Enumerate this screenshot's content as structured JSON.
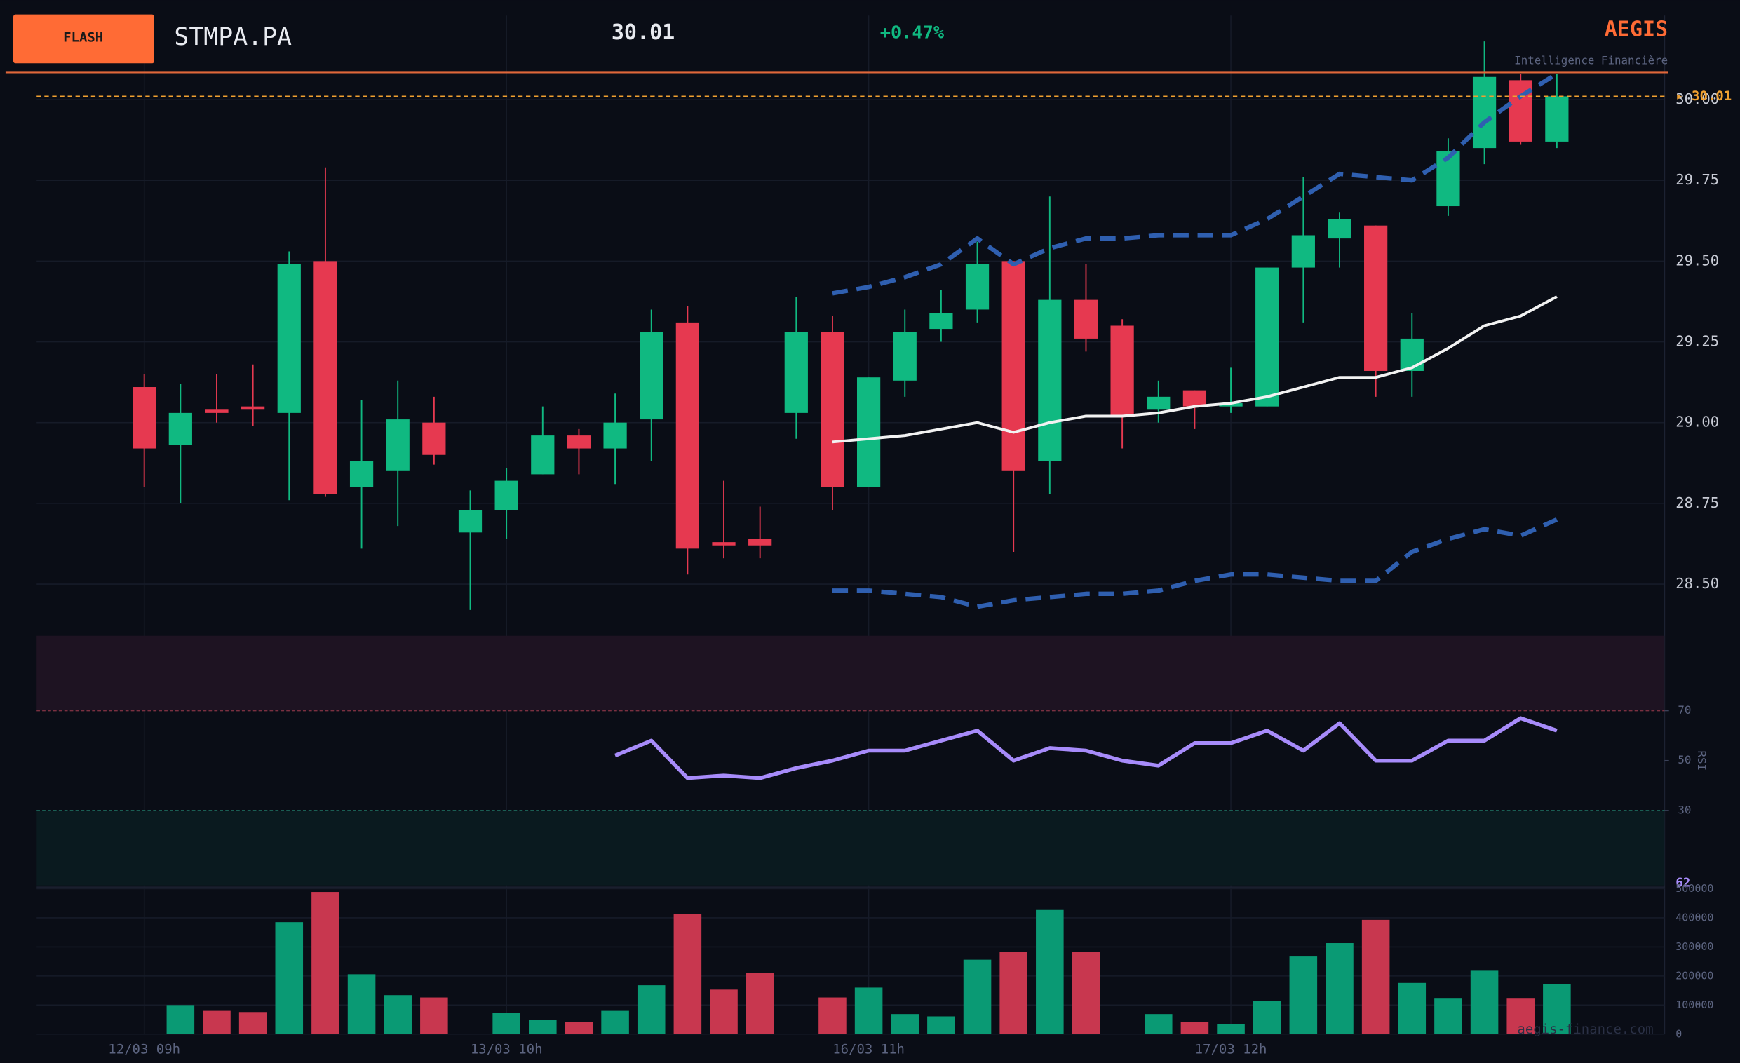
{
  "header": {
    "badge": "FLASH",
    "symbol": "STMPA.PA",
    "price": 30.01,
    "change": "+0.47%",
    "brand": "AEGIS",
    "tagline": "Intelligence Financière",
    "watermark": "aegis-finance.com"
  },
  "chart_data": [
    {
      "type": "candlestick",
      "categories": [
        "12/03 09h",
        null,
        null,
        null,
        null,
        null,
        null,
        null,
        null,
        null,
        "13/03 10h",
        null,
        null,
        null,
        null,
        null,
        null,
        null,
        null,
        null,
        "16/03 11h",
        null,
        null,
        null,
        null,
        null,
        null,
        null,
        null,
        null,
        "17/03 12h",
        null,
        null,
        null,
        null,
        null,
        null,
        null,
        null,
        null
      ],
      "open": [
        29.11,
        28.93,
        29.04,
        29.05,
        29.03,
        29.5,
        28.8,
        28.85,
        29.0,
        28.66,
        28.73,
        28.84,
        28.96,
        28.92,
        29.01,
        29.31,
        28.63,
        28.64,
        29.03,
        29.28,
        28.8,
        29.13,
        29.29,
        29.35,
        29.5,
        28.88,
        29.38,
        29.3,
        29.04,
        29.1,
        29.05,
        29.05,
        29.48,
        29.57,
        29.61,
        29.16,
        29.67,
        29.85,
        30.06,
        29.87
      ],
      "high": [
        29.15,
        29.12,
        29.15,
        29.18,
        29.53,
        29.79,
        29.07,
        29.13,
        29.08,
        28.79,
        28.86,
        29.05,
        28.98,
        29.09,
        29.35,
        29.36,
        28.82,
        28.74,
        29.39,
        29.33,
        29.14,
        29.35,
        29.41,
        29.56,
        29.5,
        29.7,
        29.49,
        29.32,
        29.13,
        29.1,
        29.17,
        29.48,
        29.76,
        29.65,
        29.61,
        29.34,
        29.88,
        30.18,
        30.08,
        30.08
      ],
      "low": [
        28.8,
        28.75,
        29.0,
        28.99,
        28.76,
        28.77,
        28.61,
        28.68,
        28.87,
        28.42,
        28.64,
        28.84,
        28.84,
        28.81,
        28.88,
        28.53,
        28.58,
        28.58,
        28.95,
        28.73,
        28.8,
        29.08,
        29.25,
        29.31,
        28.6,
        28.78,
        29.22,
        28.92,
        29.0,
        28.98,
        29.03,
        29.05,
        29.31,
        29.48,
        29.08,
        29.08,
        29.64,
        29.8,
        29.86,
        29.85
      ],
      "close": [
        28.92,
        29.03,
        29.03,
        29.04,
        29.49,
        28.78,
        28.88,
        29.01,
        28.9,
        28.73,
        28.82,
        28.96,
        28.92,
        29.0,
        29.28,
        28.61,
        28.62,
        28.62,
        29.28,
        28.8,
        29.14,
        29.28,
        29.34,
        29.49,
        28.85,
        29.38,
        29.26,
        29.02,
        29.08,
        29.05,
        29.06,
        29.48,
        29.58,
        29.63,
        29.16,
        29.26,
        29.84,
        30.07,
        29.87,
        30.01
      ],
      "up_color": "#10b981",
      "down_color": "#e63950",
      "overlays": [
        {
          "color": "#2f5fb0",
          "style": "dashed",
          "values": [
            null,
            null,
            null,
            null,
            null,
            null,
            null,
            null,
            null,
            null,
            null,
            null,
            null,
            null,
            null,
            null,
            null,
            null,
            null,
            29.4,
            29.42,
            29.45,
            29.49,
            29.57,
            29.49,
            29.54,
            29.57,
            29.57,
            29.58,
            29.58,
            29.58,
            29.63,
            29.7,
            29.77,
            29.76,
            29.75,
            29.82,
            29.93,
            30.01,
            30.08
          ]
        },
        {
          "color": "#f2f2f2",
          "style": "solid",
          "values": [
            null,
            null,
            null,
            null,
            null,
            null,
            null,
            null,
            null,
            null,
            null,
            null,
            null,
            null,
            null,
            null,
            null,
            null,
            null,
            28.94,
            28.95,
            28.96,
            28.98,
            29.0,
            28.97,
            29.0,
            29.02,
            29.02,
            29.03,
            29.05,
            29.06,
            29.08,
            29.11,
            29.14,
            29.14,
            29.17,
            29.23,
            29.3,
            29.33,
            29.39
          ]
        },
        {
          "color": "#2f5fb0",
          "style": "dashed",
          "values": [
            null,
            null,
            null,
            null,
            null,
            null,
            null,
            null,
            null,
            null,
            null,
            null,
            null,
            null,
            null,
            null,
            null,
            null,
            null,
            28.48,
            28.48,
            28.47,
            28.46,
            28.43,
            28.45,
            28.46,
            28.47,
            28.47,
            28.48,
            28.51,
            28.53,
            28.53,
            28.52,
            28.51,
            28.51,
            28.6,
            28.64,
            28.67,
            28.65,
            28.7
          ]
        }
      ],
      "last_price": 30.01,
      "last_price_label": "▸ 30.01",
      "last_price_color": "#f0a030",
      "ylim": [
        28.34,
        30.26
      ],
      "yticks": [
        {
          "value": 28.5,
          "label": "28.50"
        },
        {
          "value": 28.75,
          "label": "28.75"
        },
        {
          "value": 29,
          "label": "29.00"
        },
        {
          "value": 29.25,
          "label": "29.25"
        },
        {
          "value": 29.5,
          "label": "29.50"
        },
        {
          "value": 29.75,
          "label": "29.75"
        },
        {
          "value": 30,
          "label": "30.00"
        }
      ],
      "grid": true
    },
    {
      "type": "line",
      "y_label": "RSI",
      "color": "#a78bfa",
      "values": [
        null,
        null,
        null,
        null,
        null,
        null,
        null,
        null,
        null,
        null,
        null,
        null,
        null,
        52,
        58,
        43,
        44,
        43,
        47,
        50,
        54,
        54,
        58,
        62,
        50,
        55,
        54,
        50,
        48,
        57,
        57,
        62,
        54,
        65,
        50,
        50,
        58,
        58,
        67,
        62
      ],
      "ylim": [
        0,
        100
      ],
      "yticks": [
        30,
        50,
        70
      ],
      "overbought": 70,
      "oversold": 30
    },
    {
      "type": "bar",
      "values": [
        0,
        100000,
        80000,
        76000,
        385000,
        489000,
        206000,
        134000,
        126000,
        0,
        73000,
        50000,
        42000,
        80000,
        168000,
        412000,
        153000,
        210000,
        0,
        126000,
        160000,
        69000,
        61000,
        256000,
        282000,
        427000,
        282000,
        0,
        69000,
        42000,
        34000,
        115000,
        267000,
        313000,
        393000,
        176000,
        122000,
        218000,
        122000,
        172000
      ],
      "up_color": "#0a9a74",
      "down_color": "#c8374f",
      "ylim": [
        0,
        500000
      ],
      "yticks": [
        0,
        100000,
        200000,
        300000,
        400000,
        500000
      ],
      "grid": true
    }
  ]
}
